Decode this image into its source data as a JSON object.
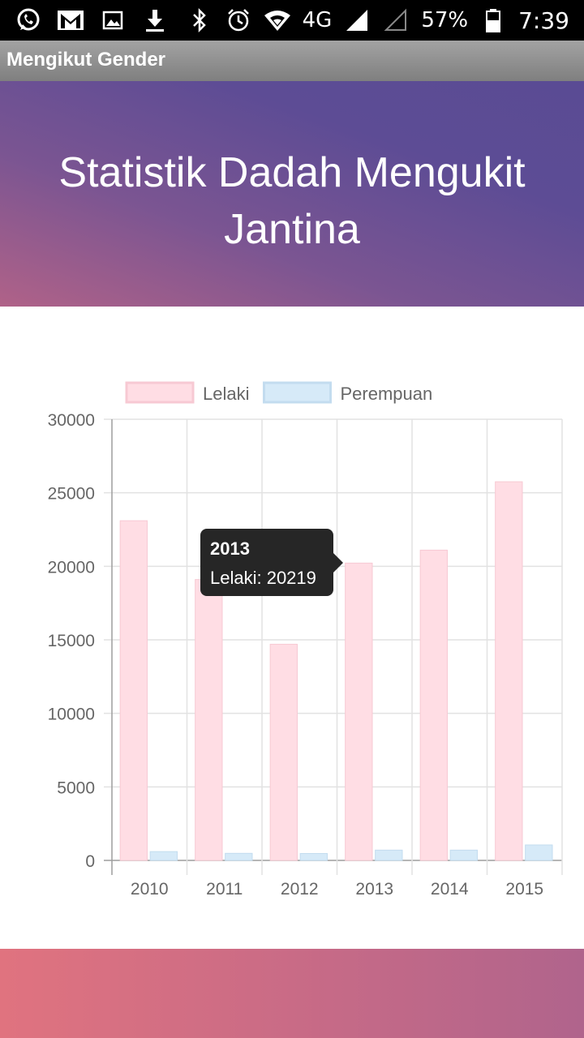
{
  "status_bar": {
    "battery": "57%",
    "network": "4G",
    "time": "7:39",
    "left_icons": [
      "whatsapp-icon",
      "gmail-icon",
      "image-icon",
      "download-icon"
    ],
    "right_icons": [
      "bluetooth-icon",
      "alarm-icon",
      "wifi-icon",
      "signal-icon",
      "signal-empty-icon",
      "battery-icon"
    ]
  },
  "app_bar": {
    "title": "Mengikut Gender"
  },
  "hero": {
    "title": "Statistik Dadah Mengukit Jantina"
  },
  "tooltip": {
    "title": "2013",
    "body": "Lelaki: 20219"
  },
  "colors": {
    "male_fill": "#ffdde4",
    "male_border": "#f7c9d3",
    "female_fill": "#d6eaf8",
    "female_border": "#c3dcef"
  },
  "chart_data": {
    "type": "bar",
    "categories": [
      "2010",
      "2011",
      "2012",
      "2013",
      "2014",
      "2015"
    ],
    "series": [
      {
        "name": "Lelaki",
        "values": [
          23100,
          19100,
          14700,
          20219,
          21100,
          25750
        ]
      },
      {
        "name": "Perempuan",
        "values": [
          600,
          480,
          470,
          700,
          700,
          1050
        ]
      }
    ],
    "ylim": [
      0,
      30000
    ],
    "yticks": [
      "0",
      "5000",
      "10000",
      "15000",
      "20000",
      "25000",
      "30000"
    ],
    "legend": "top",
    "grid": true
  }
}
